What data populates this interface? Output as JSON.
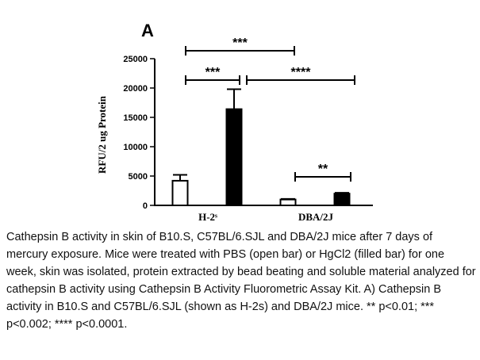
{
  "chart_data": {
    "type": "bar",
    "panel_label": "A",
    "ylabel": "RFU/2 ug Protein",
    "categories": [
      "H-2ˢ",
      "DBA/2J"
    ],
    "series": [
      {
        "color": "#ffffff",
        "values": [
          4200,
          1000
        ],
        "errors": [
          1000,
          100
        ]
      },
      {
        "color": "#000000",
        "values": [
          16400,
          2000
        ],
        "errors": [
          3400,
          150
        ]
      }
    ],
    "ylim": [
      0,
      25000
    ],
    "yticks": [
      0,
      5000,
      10000,
      15000,
      20000,
      25000
    ],
    "annotations": [
      "***",
      "***",
      "****",
      "**"
    ]
  },
  "caption": "Cathepsin B activity in skin of B10.S, C57BL/6.SJL and DBA/2J mice after 7 days of mercury exposure. Mice were treated with PBS (open bar) or HgCl2 (filled bar) for one week, skin was isolated, protein extracted by bead beating and soluble material analyzed for cathepsin B activity using Cathepsin B Activity Fluorometric Assay Kit. A) Cathepsin B activity in B10.S and C57BL/6.SJL (shown as H-2s) and DBA/2J mice. ** p<0.01; *** p<0.002; **** p<0.0001."
}
